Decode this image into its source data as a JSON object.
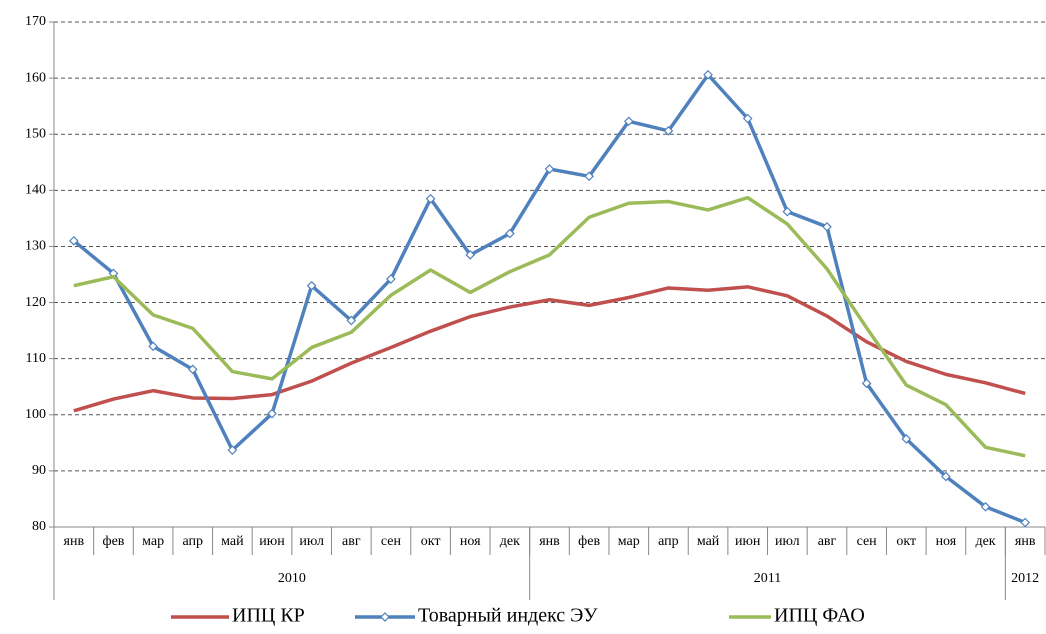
{
  "chart_data": {
    "type": "line",
    "categories": [
      "янв",
      "фев",
      "мар",
      "апр",
      "май",
      "июн",
      "июл",
      "авг",
      "сен",
      "окт",
      "ноя",
      "дек",
      "янв",
      "фев",
      "мар",
      "апр",
      "май",
      "июн",
      "июл",
      "авг",
      "сен",
      "окт",
      "ноя",
      "дек",
      "янв"
    ],
    "x_groups": [
      {
        "label": "2010",
        "count": 12
      },
      {
        "label": "2011",
        "count": 12
      },
      {
        "label": "2012",
        "count": 1
      }
    ],
    "series": [
      {
        "name": "ИПЦ КР",
        "color": "#c0504d",
        "markers": false,
        "values": [
          100.7,
          102.8,
          104.3,
          103.0,
          102.9,
          103.6,
          106.0,
          109.2,
          112.0,
          114.9,
          117.5,
          119.2,
          120.5,
          119.5,
          120.9,
          122.6,
          122.2,
          122.8,
          121.2,
          117.6,
          113.0,
          109.5,
          107.2,
          105.7,
          103.8
        ]
      },
      {
        "name": "Товарный индекс ЭУ",
        "color": "#4f81bd",
        "markers": true,
        "values": [
          131.0,
          125.2,
          112.2,
          108.1,
          93.7,
          100.2,
          123.0,
          116.8,
          124.2,
          138.5,
          128.5,
          132.3,
          143.8,
          142.5,
          152.3,
          150.6,
          160.6,
          152.8,
          136.2,
          133.5,
          105.6,
          95.7,
          89.0,
          83.6,
          80.8
        ]
      },
      {
        "name": "ИПЦ ФАО",
        "color": "#9bbb59",
        "markers": false,
        "values": [
          123.0,
          124.6,
          117.8,
          115.4,
          107.7,
          106.4,
          112.0,
          114.7,
          121.3,
          125.8,
          121.8,
          125.5,
          128.5,
          135.2,
          137.7,
          138.0,
          136.5,
          138.7,
          134.0,
          126.0,
          115.5,
          105.3,
          101.8,
          94.2,
          92.7
        ]
      }
    ],
    "ylim": [
      80,
      170
    ],
    "yticks": [
      80,
      90,
      100,
      110,
      120,
      130,
      140,
      150,
      160,
      170
    ],
    "grid": true,
    "legend": "bottom"
  }
}
